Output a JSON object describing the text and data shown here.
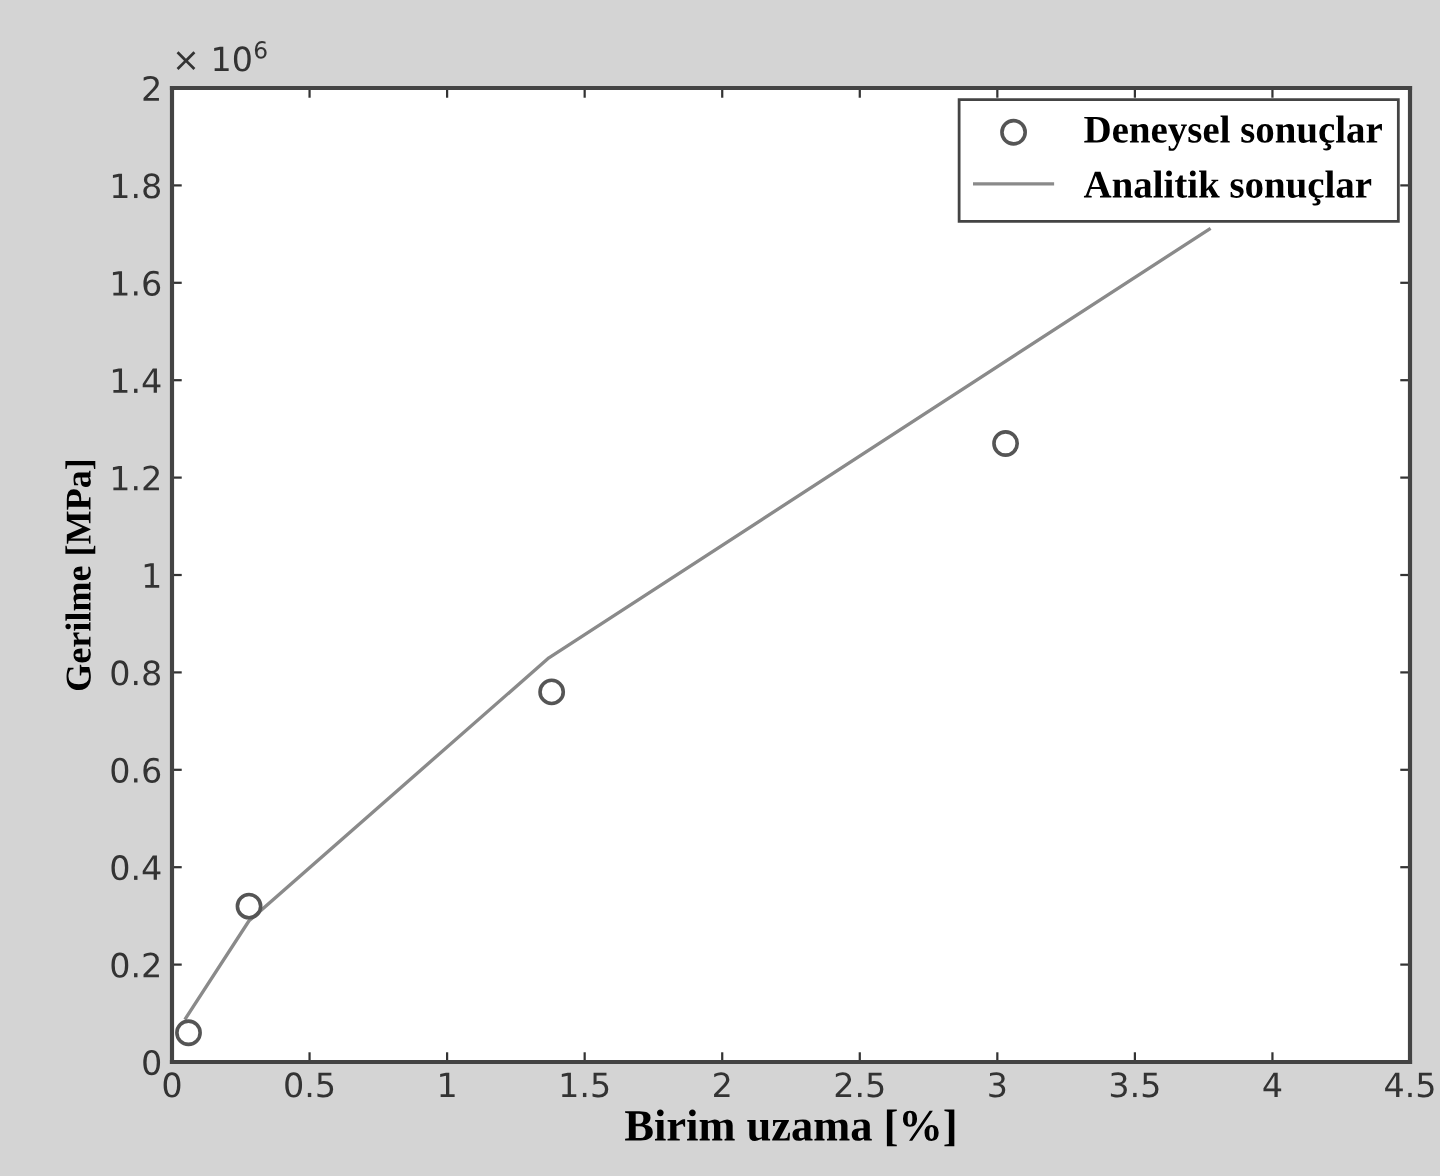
{
  "chart_data": {
    "type": "scatter",
    "xlabel": "Birim uzama [%]",
    "ylabel": "Gerilme [MPa]",
    "annotations": [
      "× 10$^{6}$"
    ],
    "series": [
      {
        "name": "Deneysel sonuçlar",
        "color": "#555555",
        "marker": "circle",
        "x": [
          0.06,
          0.28,
          1.38,
          3.03
        ],
        "values": [
          0.06,
          0.32,
          0.76,
          1.27
        ]
      },
      {
        "name": "Analitik sonuçlar",
        "type": "line",
        "color": "#8a8a8a",
        "x": [
          0.05,
          0.28,
          1.37,
          3.77
        ],
        "values": [
          0.09,
          0.29,
          0.83,
          1.71
        ]
      }
    ],
    "xlim": [
      0,
      4.5
    ],
    "xticks": [
      0,
      0.5,
      1,
      1.5,
      2,
      2.5,
      3,
      3.5,
      4,
      4.5
    ],
    "ylim": [
      0,
      2
    ],
    "yticks": [
      0,
      0.2,
      0.4,
      0.6,
      0.8,
      1,
      1.2,
      1.4,
      1.6,
      1.8,
      2
    ],
    "legend": "top right"
  }
}
